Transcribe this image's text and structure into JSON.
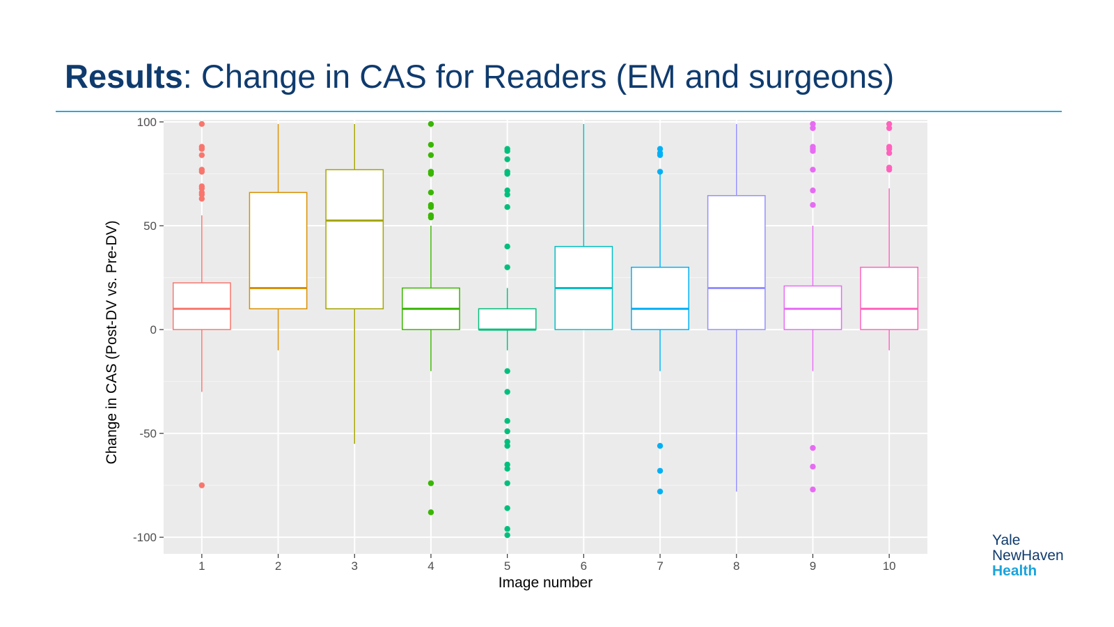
{
  "slide": {
    "title_bold": "Results",
    "title_rest": ":  Change in CAS for Readers (EM and surgeons)"
  },
  "logo": {
    "line1": "Yale",
    "line2": "NewHaven",
    "line3": "Health"
  },
  "chart_data": {
    "type": "boxplot",
    "xlabel": "Image number",
    "ylabel": "Change in CAS (Post-DV vs. Pre-DV)",
    "ylim": [
      -108,
      101
    ],
    "yticks": [
      100,
      50,
      0,
      -50,
      -100
    ],
    "yticklabels": [
      "100",
      "50",
      "0",
      "-50",
      "-100"
    ],
    "grid": true,
    "background": "#ebebeb",
    "categories": [
      "1",
      "2",
      "3",
      "4",
      "5",
      "6",
      "7",
      "8",
      "9",
      "10"
    ],
    "series": [
      {
        "name": "1",
        "color": "#f8766d",
        "q1": 0,
        "median": 10,
        "q3": 22.5,
        "whisker_low": -30,
        "whisker_high": 55,
        "outliers": [
          99,
          88,
          87,
          84,
          77,
          76,
          69,
          68,
          66,
          65,
          63,
          -75
        ]
      },
      {
        "name": "2",
        "color": "#d89000",
        "q1": 10,
        "median": 20,
        "q3": 66,
        "whisker_low": -10,
        "whisker_high": 99,
        "outliers": []
      },
      {
        "name": "3",
        "color": "#a3a500",
        "q1": 10,
        "median": 52.5,
        "q3": 77,
        "whisker_low": -55,
        "whisker_high": 99,
        "outliers": []
      },
      {
        "name": "4",
        "color": "#39b600",
        "q1": 0,
        "median": 10,
        "q3": 20,
        "whisker_low": -20,
        "whisker_high": 50,
        "outliers": [
          99,
          89,
          84,
          76,
          75,
          66,
          60,
          59,
          55,
          54,
          -74,
          -88
        ]
      },
      {
        "name": "5",
        "color": "#00bf7d",
        "q1": 0,
        "median": 0,
        "q3": 10,
        "whisker_low": -10,
        "whisker_high": 20,
        "outliers": [
          87,
          86,
          82,
          76,
          75,
          67,
          65,
          59,
          40,
          30,
          -20,
          -30,
          -44,
          -49,
          -54,
          -56,
          -65,
          -67,
          -74,
          -86,
          -96,
          -99
        ]
      },
      {
        "name": "6",
        "color": "#00bfc4",
        "q1": 0,
        "median": 20,
        "q3": 40,
        "whisker_low": 0,
        "whisker_high": 99,
        "outliers": []
      },
      {
        "name": "7",
        "color": "#00b0f6",
        "q1": 0,
        "median": 10,
        "q3": 30,
        "whisker_low": -20,
        "whisker_high": 75,
        "outliers": [
          87,
          85,
          84,
          76,
          -56,
          -68,
          -78
        ]
      },
      {
        "name": "8",
        "color": "#9590ff",
        "q1": 0,
        "median": 20,
        "q3": 64.5,
        "whisker_low": -78,
        "whisker_high": 99,
        "outliers": []
      },
      {
        "name": "9",
        "color": "#e76bf3",
        "q1": 0,
        "median": 10,
        "q3": 21,
        "whisker_low": -20,
        "whisker_high": 50,
        "outliers": [
          99,
          97,
          88,
          87,
          86,
          77,
          67,
          60,
          -57,
          -66,
          -77
        ]
      },
      {
        "name": "10",
        "color": "#ff62bc",
        "q1": 0,
        "median": 10,
        "q3": 30,
        "whisker_low": -10,
        "whisker_high": 68,
        "outliers": [
          99,
          97,
          88,
          87,
          85,
          78,
          77
        ]
      }
    ]
  }
}
